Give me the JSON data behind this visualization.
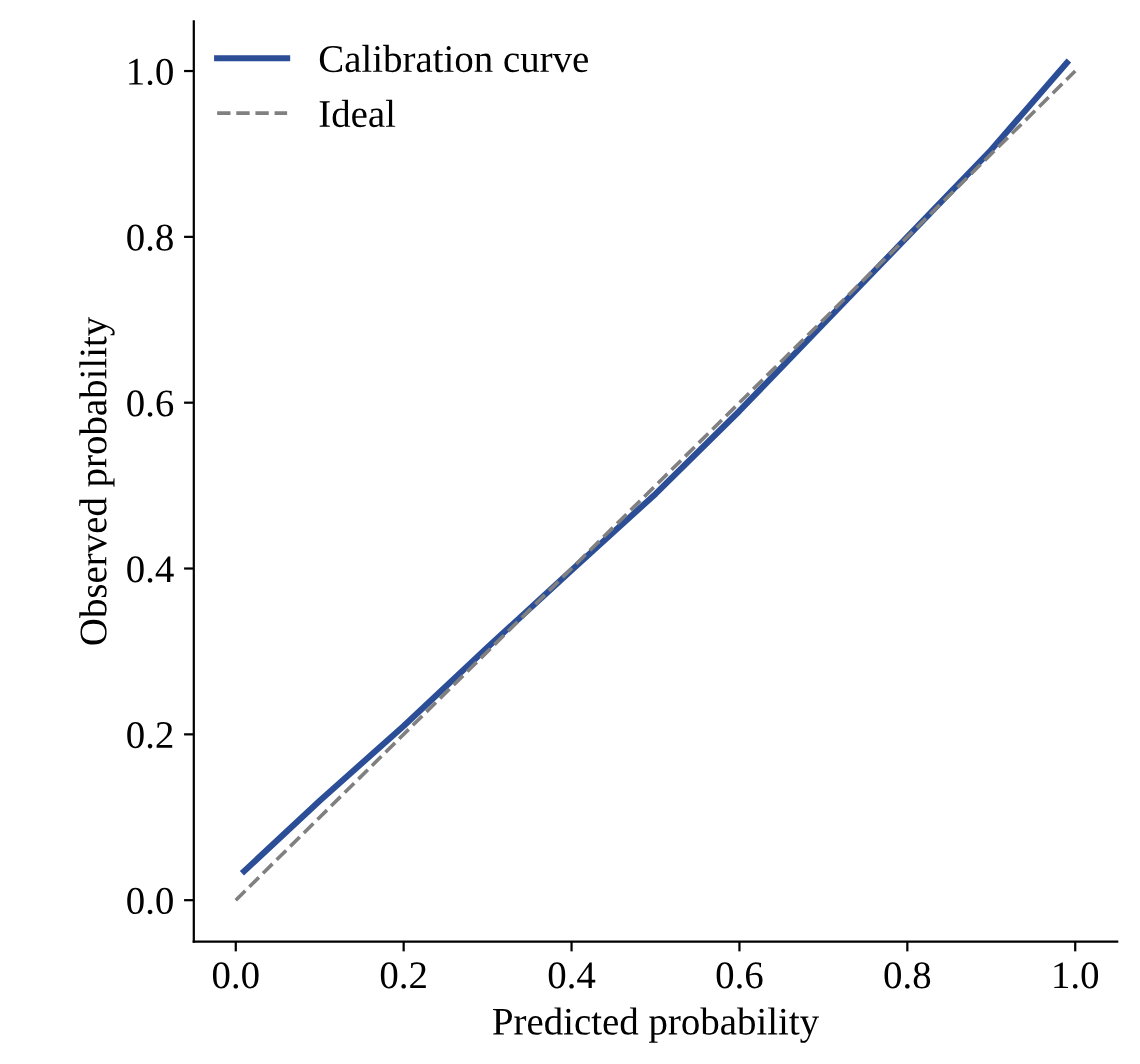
{
  "chart_data": {
    "type": "line",
    "xlabel": "Predicted probability",
    "ylabel": "Observed probability",
    "xlim": [
      -0.05,
      1.05
    ],
    "ylim": [
      -0.05,
      1.06
    ],
    "xticks": [
      {
        "value": 0,
        "label": "0.0"
      },
      {
        "value": 0.2,
        "label": "0.2"
      },
      {
        "value": 0.4,
        "label": "0.4"
      },
      {
        "value": 0.6,
        "label": "0.6"
      },
      {
        "value": 0.8,
        "label": "0.8"
      },
      {
        "value": 1,
        "label": "1.0"
      }
    ],
    "yticks": [
      {
        "value": 0,
        "label": "0.0"
      },
      {
        "value": 0.2,
        "label": "0.2"
      },
      {
        "value": 0.4,
        "label": "0.4"
      },
      {
        "value": 0.6,
        "label": "0.6"
      },
      {
        "value": 0.8,
        "label": "0.8"
      },
      {
        "value": 1,
        "label": "1.0"
      }
    ],
    "grid": false,
    "legend": "top left",
    "series": [
      {
        "name": "Calibration curve",
        "color": "#2b4e96",
        "line_style": "solid",
        "x": [
          0.01,
          0.1,
          0.2,
          0.3,
          0.4,
          0.5,
          0.6,
          0.7,
          0.8,
          0.9,
          0.99
        ],
        "values": [
          0.035,
          0.12,
          0.21,
          0.305,
          0.398,
          0.49,
          0.59,
          0.695,
          0.8,
          0.905,
          1.01
        ]
      },
      {
        "name": "Ideal",
        "color": "#808080",
        "line_style": "dashed",
        "x": [
          0,
          1
        ],
        "values": [
          0,
          1
        ]
      }
    ]
  }
}
